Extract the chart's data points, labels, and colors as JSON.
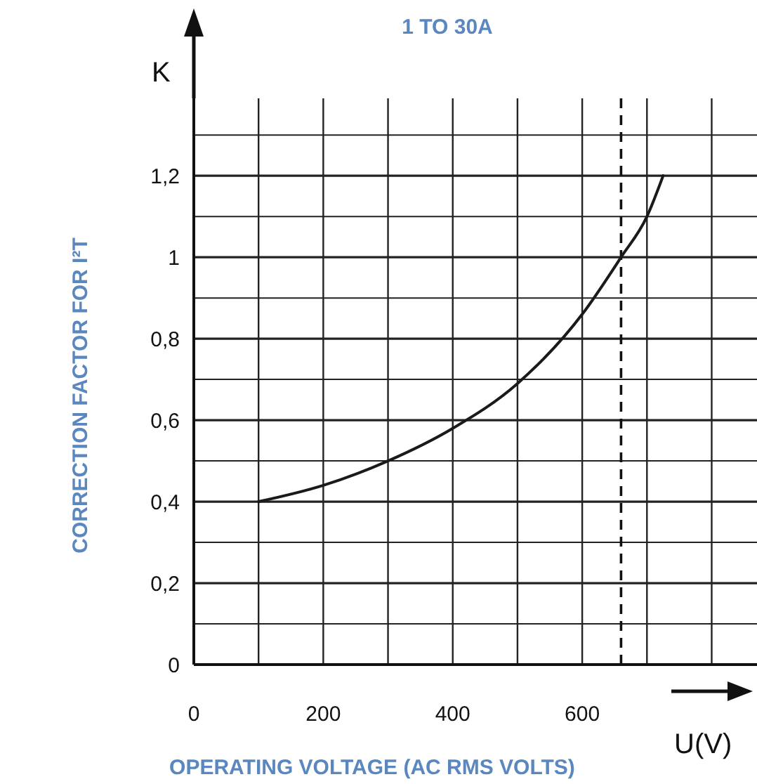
{
  "chart_data": {
    "type": "line",
    "title": "1 TO 30A",
    "xlabel": "OPERATING VOLTAGE (AC RMS VOLTS)",
    "ylabel": "CORRECTION FACTOR FOR I²T",
    "annotations": [
      "K",
      "U(V)"
    ],
    "x": [
      100,
      200,
      300,
      400,
      500,
      600,
      660,
      700,
      725
    ],
    "series": [
      {
        "color": "#1a1a1a",
        "values": [
          0.4,
          0.44,
          0.5,
          0.58,
          0.69,
          0.86,
          1.0,
          1.1,
          1.2
        ]
      }
    ],
    "xlim": [
      0,
      870
    ],
    "ylim": [
      0,
      1.39
    ],
    "xticks": [
      0,
      {
        "value": 100,
        "label": null
      },
      200,
      {
        "value": 300,
        "label": null
      },
      400,
      {
        "value": 500,
        "label": null
      },
      600,
      {
        "value": 700,
        "label": null
      },
      {
        "value": 800,
        "label": null
      }
    ],
    "yticks": [
      0,
      {
        "value": 0.1,
        "label": null
      },
      {
        "value": 0.2,
        "label": "0,2"
      },
      {
        "value": 0.3,
        "label": null
      },
      {
        "value": 0.4,
        "label": "0,4"
      },
      {
        "value": 0.5,
        "label": null
      },
      {
        "value": 0.6,
        "label": "0,6"
      },
      {
        "value": 0.7,
        "label": null
      },
      {
        "value": 0.8,
        "label": "0,8"
      },
      {
        "value": 0.9,
        "label": null
      },
      1,
      {
        "value": 1.1,
        "label": null
      },
      {
        "value": 1.2,
        "label": "1,2"
      },
      {
        "value": 1.3,
        "label": null
      }
    ],
    "grid": true,
    "marker": "none",
    "line_style": "solid",
    "ref_lines": [
      {
        "axis": "x",
        "value": 660,
        "line_style": "dashed"
      }
    ]
  }
}
